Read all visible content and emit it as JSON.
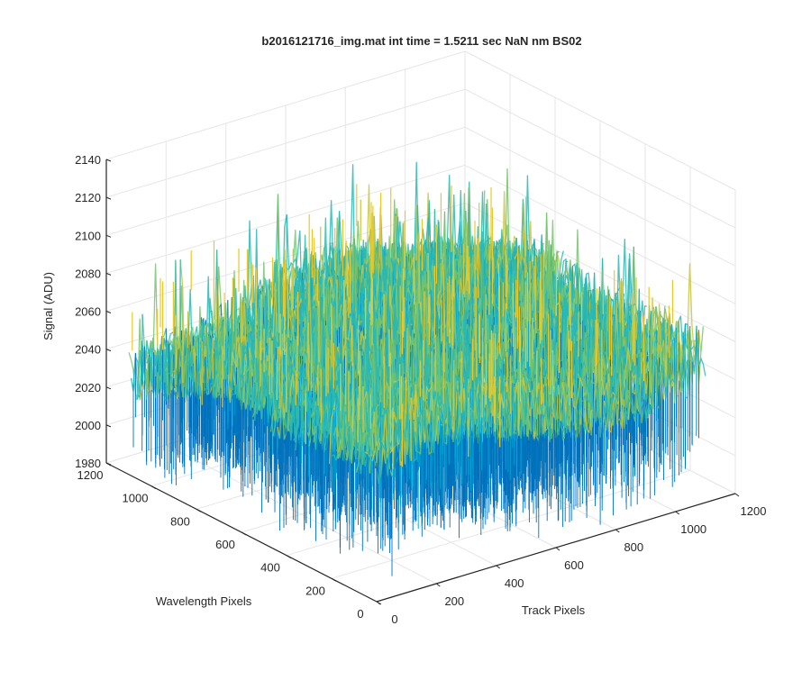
{
  "chart_data": {
    "type": "surface",
    "title": "b2016121716_img.mat int time = 1.5211 sec  NaN nm BS02",
    "xlabel": "Track Pixels",
    "ylabel": "Wavelength Pixels",
    "zlabel": "Signal (ADU)",
    "xlim": [
      0,
      1200
    ],
    "ylim": [
      0,
      1200
    ],
    "zlim": [
      1980,
      2140
    ],
    "x_ticks": [
      "0",
      "200",
      "400",
      "600",
      "800",
      "1000",
      "1200"
    ],
    "y_ticks": [
      "0",
      "200",
      "400",
      "600",
      "800",
      "1000",
      "1200"
    ],
    "z_ticks": [
      "1980",
      "2000",
      "2020",
      "2040",
      "2060",
      "2080",
      "2100",
      "2120",
      "2140"
    ],
    "data_extent": {
      "x": [
        0,
        1100
      ],
      "y": [
        0,
        1100
      ]
    },
    "signal": {
      "typical_min": 2010,
      "typical_mean": 2050,
      "typical_max": 2095,
      "peak": 2135
    },
    "grid": true,
    "colormap": [
      "#0072bd",
      "#00a6d6",
      "#2ab9b4",
      "#76c46d",
      "#c9c640",
      "#e8c92c"
    ]
  }
}
